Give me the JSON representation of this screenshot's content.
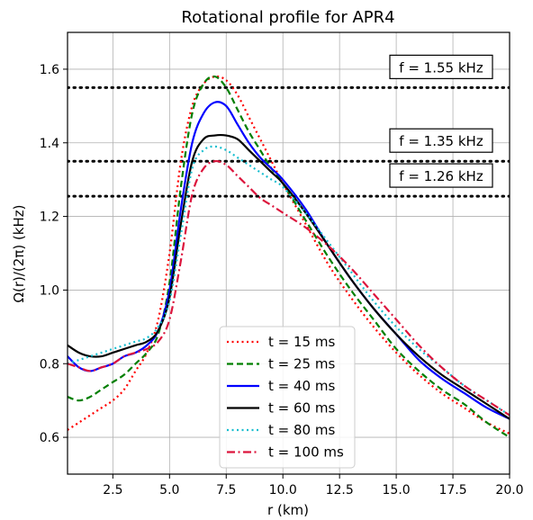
{
  "chart_data": {
    "type": "line",
    "title": "Rotational profile for APR4",
    "xlabel": "r (km)",
    "ylabel": "Ω(r)/(2π) (kHz)",
    "xlim": [
      0.5,
      20.0
    ],
    "ylim": [
      0.5,
      1.7
    ],
    "xticks": [
      "2.5",
      "5.0",
      "7.5",
      "10.0",
      "12.5",
      "15.0",
      "17.5",
      "20.0"
    ],
    "yticks": [
      "0.6",
      "0.8",
      "1.0",
      "1.2",
      "1.4",
      "1.6"
    ],
    "grid": true,
    "legend_position": "bottom-center",
    "series": [
      {
        "name": "t = 15 ms",
        "color": "#ff0000",
        "dash": "dotted",
        "x": [
          0.5,
          1.0,
          1.5,
          2.0,
          2.5,
          3.0,
          3.5,
          4.0,
          4.5,
          5.0,
          5.5,
          6.0,
          6.5,
          7.0,
          7.5,
          8.0,
          8.5,
          9.0,
          9.5,
          10.0,
          11.0,
          12.0,
          13.0,
          14.0,
          15.0,
          16.0,
          17.0,
          18.0,
          19.0,
          20.0
        ],
        "y": [
          0.62,
          0.64,
          0.66,
          0.68,
          0.7,
          0.73,
          0.78,
          0.83,
          0.92,
          1.1,
          1.35,
          1.5,
          1.56,
          1.58,
          1.57,
          1.53,
          1.47,
          1.41,
          1.35,
          1.29,
          1.18,
          1.07,
          0.98,
          0.9,
          0.83,
          0.77,
          0.72,
          0.68,
          0.64,
          0.61
        ]
      },
      {
        "name": "t = 25 ms",
        "color": "#007f00",
        "dash": "dashed",
        "x": [
          0.5,
          1.0,
          1.5,
          2.0,
          2.5,
          3.0,
          3.5,
          4.0,
          4.5,
          5.0,
          5.5,
          6.0,
          6.5,
          7.0,
          7.5,
          8.0,
          8.5,
          9.0,
          9.5,
          10.0,
          11.0,
          12.0,
          13.0,
          14.0,
          15.0,
          16.0,
          17.0,
          18.0,
          19.0,
          20.0
        ],
        "y": [
          0.71,
          0.7,
          0.71,
          0.73,
          0.75,
          0.77,
          0.8,
          0.83,
          0.88,
          1.02,
          1.28,
          1.48,
          1.56,
          1.58,
          1.55,
          1.49,
          1.43,
          1.38,
          1.33,
          1.29,
          1.19,
          1.09,
          1.0,
          0.92,
          0.84,
          0.78,
          0.73,
          0.69,
          0.64,
          0.6
        ]
      },
      {
        "name": "t = 40 ms",
        "color": "#0000ff",
        "dash": "solid",
        "x": [
          0.5,
          1.0,
          1.5,
          2.0,
          2.5,
          3.0,
          3.5,
          4.0,
          4.5,
          5.0,
          5.5,
          6.0,
          6.5,
          7.0,
          7.5,
          8.0,
          8.5,
          9.0,
          9.5,
          10.0,
          11.0,
          12.0,
          13.0,
          14.0,
          15.0,
          16.0,
          17.0,
          18.0,
          19.0,
          20.0
        ],
        "y": [
          0.82,
          0.79,
          0.78,
          0.79,
          0.8,
          0.82,
          0.83,
          0.85,
          0.89,
          1.0,
          1.22,
          1.4,
          1.48,
          1.51,
          1.5,
          1.45,
          1.4,
          1.36,
          1.33,
          1.3,
          1.22,
          1.12,
          1.03,
          0.95,
          0.88,
          0.81,
          0.76,
          0.72,
          0.68,
          0.65
        ]
      },
      {
        "name": "t = 60 ms",
        "color": "#000000",
        "dash": "solid",
        "x": [
          0.5,
          1.0,
          1.5,
          2.0,
          2.5,
          3.0,
          3.5,
          4.0,
          4.5,
          5.0,
          5.5,
          6.0,
          6.5,
          7.0,
          7.5,
          8.0,
          8.5,
          9.0,
          9.5,
          10.0,
          11.0,
          12.0,
          13.0,
          14.0,
          15.0,
          16.0,
          17.0,
          18.0,
          19.0,
          20.0
        ],
        "y": [
          0.85,
          0.83,
          0.82,
          0.82,
          0.83,
          0.84,
          0.85,
          0.86,
          0.89,
          0.98,
          1.18,
          1.35,
          1.41,
          1.42,
          1.42,
          1.41,
          1.38,
          1.35,
          1.32,
          1.29,
          1.21,
          1.12,
          1.03,
          0.95,
          0.88,
          0.82,
          0.77,
          0.73,
          0.69,
          0.65
        ]
      },
      {
        "name": "t = 80 ms",
        "color": "#17becf",
        "dash": "dotted",
        "x": [
          0.5,
          1.0,
          1.5,
          2.0,
          2.5,
          3.0,
          3.5,
          4.0,
          4.5,
          5.0,
          5.5,
          6.0,
          6.5,
          7.0,
          7.5,
          8.0,
          8.5,
          9.0,
          9.5,
          10.0,
          11.0,
          12.0,
          13.0,
          14.0,
          15.0,
          16.0,
          17.0,
          18.0,
          19.0,
          20.0
        ],
        "y": [
          0.8,
          0.81,
          0.82,
          0.83,
          0.84,
          0.85,
          0.86,
          0.87,
          0.9,
          0.97,
          1.15,
          1.33,
          1.38,
          1.39,
          1.38,
          1.36,
          1.34,
          1.32,
          1.3,
          1.28,
          1.21,
          1.13,
          1.05,
          0.97,
          0.9,
          0.84,
          0.79,
          0.74,
          0.7,
          0.66
        ]
      },
      {
        "name": "t = 100 ms",
        "color": "#dc143c",
        "dash": "dashdot",
        "x": [
          0.5,
          1.0,
          1.5,
          2.0,
          2.5,
          3.0,
          3.5,
          4.0,
          4.5,
          5.0,
          5.5,
          6.0,
          6.5,
          7.0,
          7.5,
          8.0,
          8.5,
          9.0,
          9.5,
          10.0,
          11.0,
          12.0,
          13.0,
          14.0,
          15.0,
          16.0,
          17.0,
          18.0,
          19.0,
          20.0
        ],
        "y": [
          0.8,
          0.79,
          0.78,
          0.79,
          0.8,
          0.82,
          0.83,
          0.84,
          0.86,
          0.92,
          1.08,
          1.26,
          1.33,
          1.35,
          1.34,
          1.31,
          1.28,
          1.25,
          1.23,
          1.21,
          1.17,
          1.12,
          1.06,
          0.99,
          0.92,
          0.85,
          0.79,
          0.74,
          0.7,
          0.66
        ]
      }
    ],
    "hlines": [
      {
        "y": 1.55,
        "label": "f = 1.55 kHz"
      },
      {
        "y": 1.35,
        "label": "f = 1.35 kHz"
      },
      {
        "y": 1.255,
        "label": "f = 1.26 kHz"
      }
    ]
  }
}
